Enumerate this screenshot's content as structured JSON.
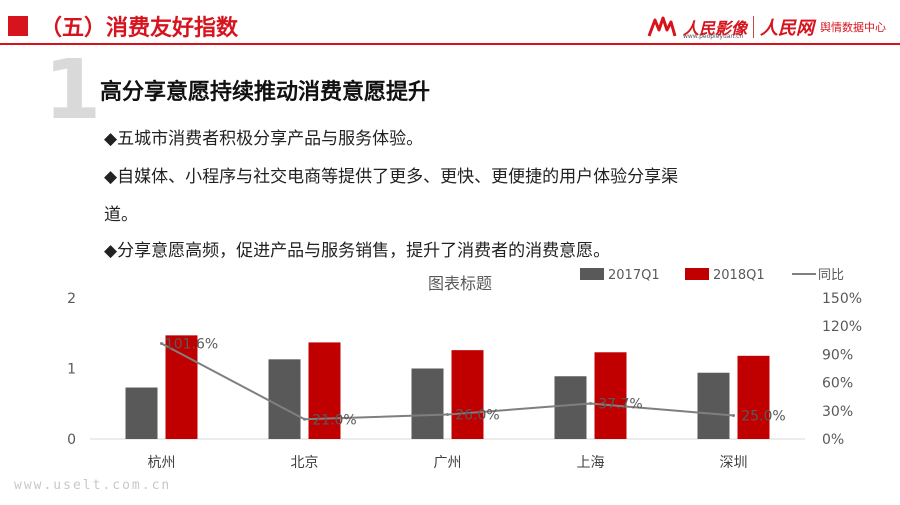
{
  "header": {
    "title": "（五）消费友好指数"
  },
  "logo": {
    "brand1": "人民影像",
    "brand1_sub": "www.peopleyuan.cn",
    "brand2": "人民网",
    "brand2_sub": "舆情数据中心"
  },
  "section": {
    "number": "1",
    "title": "高分享意愿持续推动消费意愿提升"
  },
  "bullets": [
    "◆五城市消费者积极分享产品与服务体验。",
    "◆自媒体、小程序与社交电商等提供了更多、更快、更便捷的用户体验分享渠",
    "道。",
    "◆分享意愿高频，促进产品与服务销售，提升了消费者的消费意愿。"
  ],
  "chart_data": {
    "type": "bar",
    "title": "图表标题",
    "categories": [
      "杭州",
      "北京",
      "广州",
      "上海",
      "深圳"
    ],
    "series": [
      {
        "name": "2017Q1",
        "kind": "bar",
        "axis": "left",
        "color": "#595959",
        "values": [
          0.73,
          1.13,
          1.0,
          0.89,
          0.94
        ]
      },
      {
        "name": "2018Q1",
        "kind": "bar",
        "axis": "left",
        "color": "#c00000",
        "values": [
          1.47,
          1.37,
          1.26,
          1.23,
          1.18
        ]
      },
      {
        "name": "同比",
        "kind": "line",
        "axis": "right",
        "color": "#7f7f7f",
        "values": [
          101.6,
          21.0,
          26.0,
          37.7,
          25.0
        ],
        "labels": [
          "101.6%",
          "21.0%",
          "26.0%",
          "37.7%",
          "25.0%"
        ]
      }
    ],
    "y_left": {
      "min": 0,
      "max": 2,
      "ticks": [
        "0",
        "1",
        "2"
      ],
      "tick_values": [
        0,
        1,
        2
      ]
    },
    "y_right": {
      "min": 0,
      "max": 150,
      "ticks": [
        "0%",
        "30%",
        "60%",
        "90%",
        "120%",
        "150%"
      ],
      "tick_values": [
        0,
        30,
        60,
        90,
        120,
        150
      ]
    },
    "legend_position": "top-right",
    "grid": false
  },
  "watermark": "www.uselt.com.cn"
}
